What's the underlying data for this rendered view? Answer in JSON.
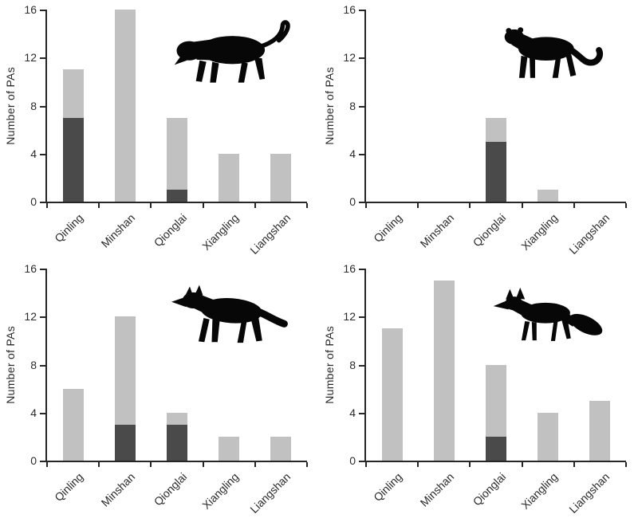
{
  "figure": {
    "background": "#ffffff",
    "axis_color": "#262626",
    "text_color": "#2b2b2b"
  },
  "chart_data": [
    {
      "type": "bar",
      "subtype": "stacked",
      "panel": "top-left",
      "animal": "leopard",
      "icon": "leopard-icon",
      "title": "",
      "ylabel": "Number of PAs",
      "xlabel": "",
      "ylim": [
        0,
        16
      ],
      "yticks": [
        0,
        4,
        8,
        12,
        16
      ],
      "grid": false,
      "legend": "none",
      "categories": [
        "Qinling",
        "Minshan",
        "Qionglai",
        "Xiangling",
        "Liangshan"
      ],
      "totals": [
        11,
        16,
        7,
        4,
        4
      ],
      "series": [
        {
          "name": "dark-segment",
          "color": "#4a4a4a",
          "values": [
            7,
            0,
            1,
            0,
            0
          ]
        },
        {
          "name": "light-segment",
          "color": "#c1c1c1",
          "values": [
            4,
            16,
            6,
            4,
            4
          ]
        }
      ]
    },
    {
      "type": "bar",
      "subtype": "stacked",
      "panel": "top-right",
      "animal": "snow-leopard",
      "icon": "snow-leopard-icon",
      "title": "",
      "ylabel": "Number of PAs",
      "xlabel": "",
      "ylim": [
        0,
        16
      ],
      "yticks": [
        0,
        4,
        8,
        12,
        16
      ],
      "grid": false,
      "legend": "none",
      "categories": [
        "Qinling",
        "Minshan",
        "Qionglai",
        "Xiangling",
        "Liangshan"
      ],
      "totals": [
        0,
        0,
        7,
        1,
        0
      ],
      "series": [
        {
          "name": "dark-segment",
          "color": "#4a4a4a",
          "values": [
            0,
            0,
            5,
            0,
            0
          ]
        },
        {
          "name": "light-segment",
          "color": "#c1c1c1",
          "values": [
            0,
            0,
            2,
            1,
            0
          ]
        }
      ]
    },
    {
      "type": "bar",
      "subtype": "stacked",
      "panel": "bottom-left",
      "animal": "wolf",
      "icon": "wolf-icon",
      "title": "",
      "ylabel": "Number of PAs",
      "xlabel": "",
      "ylim": [
        0,
        16
      ],
      "yticks": [
        0,
        4,
        8,
        12,
        16
      ],
      "grid": false,
      "legend": "none",
      "categories": [
        "Qinling",
        "Minshan",
        "Qionglai",
        "Xiangling",
        "Liangshan"
      ],
      "totals": [
        6,
        12,
        4,
        2,
        2
      ],
      "series": [
        {
          "name": "dark-segment",
          "color": "#4a4a4a",
          "values": [
            0,
            3,
            3,
            0,
            0
          ]
        },
        {
          "name": "light-segment",
          "color": "#c1c1c1",
          "values": [
            6,
            9,
            1,
            2,
            2
          ]
        }
      ]
    },
    {
      "type": "bar",
      "subtype": "stacked",
      "panel": "bottom-right",
      "animal": "fox",
      "icon": "fox-icon",
      "title": "",
      "ylabel": "Number of PAs",
      "xlabel": "",
      "ylim": [
        0,
        16
      ],
      "yticks": [
        0,
        4,
        8,
        12,
        16
      ],
      "grid": false,
      "legend": "none",
      "categories": [
        "Qinling",
        "Minshan",
        "Qionglai",
        "Xiangling",
        "Liangshan"
      ],
      "totals": [
        11,
        15,
        8,
        4,
        5
      ],
      "series": [
        {
          "name": "dark-segment",
          "color": "#4a4a4a",
          "values": [
            0,
            0,
            2,
            0,
            0
          ]
        },
        {
          "name": "light-segment",
          "color": "#c1c1c1",
          "values": [
            11,
            15,
            6,
            4,
            5
          ]
        }
      ]
    }
  ]
}
